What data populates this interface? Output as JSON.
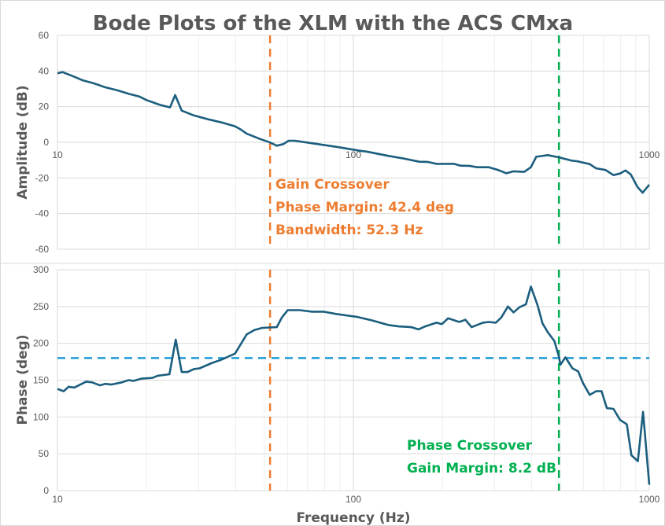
{
  "title": "Bode Plots of the XLM with the ACS CMxa",
  "colors": {
    "curve": "#1B5E7E",
    "gain_crossover": "#ED7D31",
    "phase_crossover": "#00B050",
    "reference_180": "#1E9AD6",
    "grid": "#D9D9D9",
    "text": "#595959"
  },
  "annotations": {
    "gain": [
      "Gain Crossover",
      "Phase Margin: 42.4 deg",
      "Bandwidth: 52.3 Hz"
    ],
    "phase": [
      "Phase Crossover",
      "Gain Margin: 8.2 dB"
    ]
  },
  "chart_data": [
    {
      "type": "line",
      "xlabel": "",
      "ylabel": "Amplitude (dB)",
      "xscale": "log",
      "xlim": [
        10,
        1000
      ],
      "ylim": [
        -60,
        60
      ],
      "xticks": [
        "10",
        "100",
        "1000"
      ],
      "yticks": [
        60,
        40,
        20,
        0,
        -20,
        -40,
        -60
      ],
      "grid": true,
      "vlines": [
        {
          "x": 52.3,
          "color": "orange"
        },
        {
          "x": 495,
          "color": "green"
        }
      ],
      "x": [
        10,
        10.4,
        11.3,
        12.2,
        13.2,
        14.5,
        16,
        17.4,
        18.9,
        20,
        22.2,
        24,
        25,
        26.3,
        28.9,
        32.7,
        36.2,
        39.8,
        41.7,
        43.6,
        48.3,
        52.3,
        55.1,
        58,
        60.4,
        63.5,
        71,
        87.4,
        105,
        111,
        131,
        148,
        167,
        178,
        191,
        219,
        230,
        246,
        262,
        287,
        308,
        329,
        348,
        378,
        398,
        415,
        454,
        494,
        546,
        569,
        629,
        661,
        711,
        757,
        797,
        831,
        866,
        912,
        950,
        1000
      ],
      "y": [
        38.7,
        39.4,
        37,
        34.7,
        33.2,
        30.9,
        29.1,
        27.2,
        25.7,
        23.7,
        21,
        19.6,
        26.5,
        17.8,
        15.1,
        12.7,
        11,
        9,
        7.1,
        4.9,
        1.9,
        -0.1,
        -1.9,
        -1,
        0.9,
        0.9,
        -0.3,
        -2.5,
        -4.7,
        -5.2,
        -7.6,
        -9.1,
        -10.9,
        -11,
        -12.1,
        -12.1,
        -13.1,
        -13.2,
        -14,
        -14,
        -15.5,
        -17.4,
        -16.3,
        -16.6,
        -14,
        -8.1,
        -7.2,
        -8.4,
        -10.3,
        -10.6,
        -12.2,
        -14.6,
        -15.5,
        -18.4,
        -17.5,
        -15.8,
        -18,
        -25,
        -28.3,
        -23.8
      ]
    },
    {
      "type": "line",
      "xlabel": "Frequency (Hz)",
      "ylabel": "Phase (deg)",
      "xscale": "log",
      "xlim": [
        10,
        1000
      ],
      "ylim": [
        0,
        300
      ],
      "xticks": [
        "10",
        "100",
        "1000"
      ],
      "yticks": [
        300,
        250,
        200,
        150,
        100,
        50,
        0
      ],
      "grid": true,
      "hline": 180,
      "vlines": [
        {
          "x": 52.3,
          "color": "orange"
        },
        {
          "x": 495,
          "color": "green"
        }
      ],
      "x": [
        10,
        10.5,
        10.9,
        11.4,
        12.5,
        13.1,
        13.9,
        14.5,
        15.2,
        16.5,
        17.4,
        18.1,
        19.2,
        20.9,
        21.8,
        23.9,
        25.1,
        26.3,
        27.5,
        28.9,
        30.2,
        33.1,
        35.9,
        37.8,
        39.8,
        43.6,
        46.3,
        49.2,
        55.1,
        57.3,
        60,
        66,
        72.5,
        79.3,
        87,
        94.5,
        102.5,
        116,
        131,
        142,
        157,
        166,
        175,
        191,
        199,
        209,
        228,
        239,
        251,
        274,
        287,
        303,
        316,
        333,
        348,
        364,
        383,
        398,
        419,
        436,
        454,
        478,
        495,
        501,
        521,
        550,
        575,
        597,
        629,
        661,
        690,
        719,
        757,
        797,
        840,
        870,
        915,
        953,
        1000
      ],
      "y": [
        138,
        135,
        141,
        140,
        148,
        147,
        143,
        145,
        144,
        147,
        150,
        149,
        152,
        153,
        156,
        158,
        205,
        161,
        161,
        165,
        166,
        173,
        178,
        182,
        186,
        212,
        218,
        221,
        222,
        235,
        245,
        245,
        243,
        243,
        240,
        238,
        236,
        231,
        225,
        223,
        222,
        219,
        223,
        228,
        226,
        234,
        229,
        232,
        222,
        228,
        229,
        228,
        235,
        250,
        242,
        249,
        253,
        277,
        252,
        227,
        215,
        203,
        182,
        171,
        181,
        166,
        162,
        146,
        130,
        135,
        135,
        112,
        111,
        96,
        90,
        48,
        40,
        107,
        8
      ]
    }
  ]
}
